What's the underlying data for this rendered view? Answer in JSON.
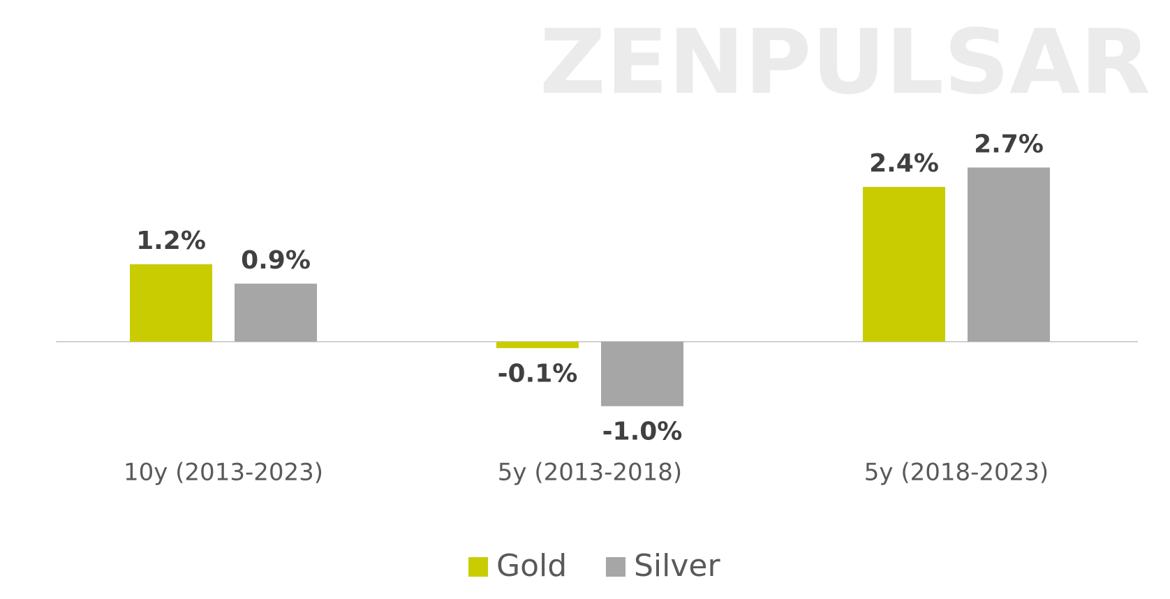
{
  "chart_data": {
    "type": "bar",
    "watermark": "ZENPULSAR",
    "categories": [
      "10y (2013-2023)",
      "5y (2013-2018)",
      "5y (2018-2023)"
    ],
    "series": [
      {
        "name": "Gold",
        "color": "#c8cc00",
        "values": [
          1.2,
          -0.1,
          2.4
        ],
        "value_labels": [
          "1.2%",
          "-0.1%",
          "2.4%"
        ]
      },
      {
        "name": "Silver",
        "color": "#a6a6a6",
        "values": [
          0.9,
          -1.0,
          2.7
        ],
        "value_labels": [
          "0.9%",
          "-1.0%",
          "2.7%"
        ]
      }
    ],
    "legend": "bottom"
  }
}
